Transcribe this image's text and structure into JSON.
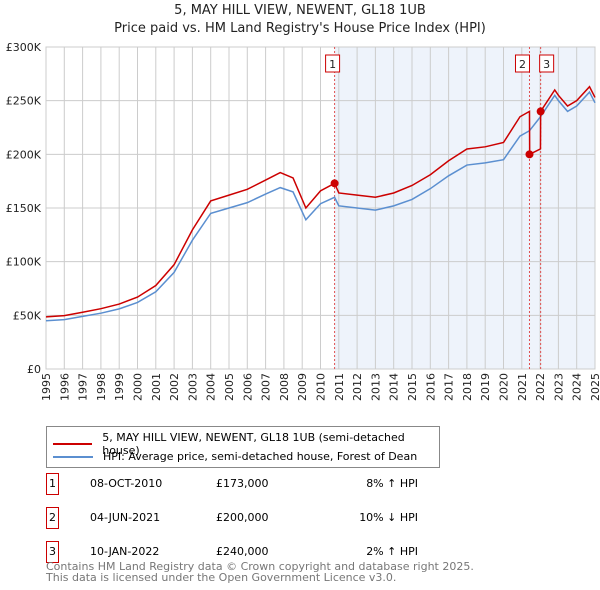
{
  "title": "5, MAY HILL VIEW, NEWENT, GL18 1UB",
  "subtitle": "Price paid vs. HM Land Registry's House Price Index (HPI)",
  "chart_data": {
    "type": "line",
    "title": "5, MAY HILL VIEW, NEWENT, GL18 1UB",
    "xlim": [
      1995,
      2025
    ],
    "ylim": [
      0,
      300000
    ],
    "x_ticks": [
      "1995",
      "1996",
      "1997",
      "1998",
      "1999",
      "2000",
      "2001",
      "2002",
      "2003",
      "2004",
      "2005",
      "2006",
      "2007",
      "2008",
      "2009",
      "2010",
      "2011",
      "2012",
      "2013",
      "2014",
      "2015",
      "2016",
      "2017",
      "2018",
      "2019",
      "2020",
      "2021",
      "2022",
      "2023",
      "2024",
      "2025"
    ],
    "y_ticks": [
      {
        "v": 0,
        "label": "£0"
      },
      {
        "v": 50000,
        "label": "£50K"
      },
      {
        "v": 100000,
        "label": "£100K"
      },
      {
        "v": 150000,
        "label": "£150K"
      },
      {
        "v": 200000,
        "label": "£200K"
      },
      {
        "v": 250000,
        "label": "£250K"
      },
      {
        "v": 300000,
        "label": "£300K"
      }
    ],
    "colors": {
      "property": "#cc0000",
      "hpi": "#5b8fd0",
      "shade": "#eef3fb"
    },
    "series": [
      {
        "name": "5, MAY HILL VIEW, NEWENT, GL18 1UB (semi-detached house)",
        "x": [
          1995,
          1996,
          1997,
          1998,
          1999,
          2000,
          2001,
          2002,
          2003,
          2004,
          2005,
          2006,
          2007,
          2007.8,
          2008.5,
          2009.2,
          2010,
          2010.77,
          2011,
          2012,
          2013,
          2014,
          2015,
          2016,
          2017,
          2018,
          2019,
          2020,
          2020.9,
          2021.42,
          2021.43,
          2022.02,
          2022.03,
          2022.8,
          2023,
          2023.5,
          2024,
          2024.7,
          2025
        ],
        "values": [
          48600,
          49700,
          52900,
          56200,
          60500,
          67000,
          77800,
          97200,
          129600,
          156600,
          162000,
          167400,
          176000,
          183000,
          178000,
          150000,
          166000,
          173000,
          164000,
          162000,
          160000,
          164000,
          171000,
          181000,
          194000,
          205000,
          207000,
          211000,
          235000,
          240000,
          200000,
          205000,
          240000,
          260000,
          255000,
          245000,
          250000,
          263000,
          253000
        ]
      },
      {
        "name": "HPI: Average price, semi-detached house, Forest of Dean",
        "x": [
          1995,
          1996,
          1997,
          1998,
          1999,
          2000,
          2001,
          2002,
          2003,
          2004,
          2005,
          2006,
          2007,
          2007.8,
          2008.5,
          2009.2,
          2010,
          2010.77,
          2011,
          2012,
          2013,
          2014,
          2015,
          2016,
          2017,
          2018,
          2019,
          2020,
          2020.9,
          2021.42,
          2022.02,
          2022.8,
          2023,
          2023.5,
          2024,
          2024.7,
          2025
        ],
        "values": [
          45000,
          46000,
          49000,
          52000,
          56000,
          62000,
          72000,
          90000,
          120000,
          145000,
          150000,
          155000,
          163000,
          169000,
          165000,
          139000,
          154000,
          160000,
          152000,
          150000,
          148000,
          152000,
          158000,
          168000,
          180000,
          190000,
          192000,
          195000,
          217000,
          222000,
          235000,
          255000,
          250000,
          240000,
          245000,
          258000,
          248000
        ]
      }
    ],
    "sales": [
      {
        "id": "1",
        "x": 2010.77,
        "price": 173000
      },
      {
        "id": "2",
        "x": 2021.42,
        "price": 200000
      },
      {
        "id": "3",
        "x": 2022.03,
        "price": 240000
      }
    ]
  },
  "legend": {
    "property": "5, MAY HILL VIEW, NEWENT, GL18 1UB (semi-detached house)",
    "hpi": "HPI: Average price, semi-detached house, Forest of Dean"
  },
  "transactions": [
    {
      "id": "1",
      "date": "08-OCT-2010",
      "price": "£173,000",
      "hpi": "8% ↑ HPI"
    },
    {
      "id": "2",
      "date": "04-JUN-2021",
      "price": "£200,000",
      "hpi": "10% ↓ HPI"
    },
    {
      "id": "3",
      "date": "10-JAN-2022",
      "price": "£240,000",
      "hpi": "2% ↑ HPI"
    }
  ],
  "footer": [
    "Contains HM Land Registry data © Crown copyright and database right 2025.",
    "This data is licensed under the Open Government Licence v3.0."
  ]
}
